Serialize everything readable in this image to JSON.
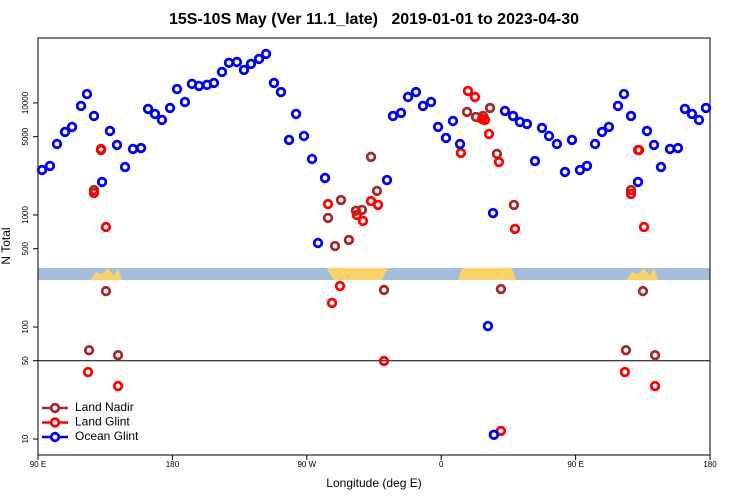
{
  "chart_data": {
    "type": "scatter",
    "title": "15S-10S May (Ver 11.1_late)   2019-01-01 to 2023-04-30",
    "x_label": "Longitude (deg E)",
    "y_label": "N Total",
    "xlim": [
      90,
      540
    ],
    "ylim": [
      7.2,
      38000
    ],
    "log_y": true,
    "xticks": [
      {
        "value": 90,
        "label": "90 E"
      },
      {
        "value": 180,
        "label": "180"
      },
      {
        "value": 270,
        "label": "90 W"
      },
      {
        "value": 360,
        "label": "0"
      },
      {
        "value": 450,
        "label": "90 E"
      },
      {
        "value": 540,
        "label": "180"
      }
    ],
    "yticks": [
      10,
      50,
      100,
      500,
      1000,
      5000,
      10000
    ],
    "reference_line": 50,
    "legend": "bottomleft",
    "series": [
      {
        "name": "Land Nadir",
        "color": "#a52a2a",
        "x": [
          127.5,
          132.2,
          135.5,
          124.2,
          143.6,
          284.2,
          288.9,
          292.9,
          298.2,
          302.9,
          306.9,
          313.0,
          317.0,
          321.7,
          377.3,
          383.3,
          388.0,
          392.7,
          397.3,
          400.0,
          408.7,
          487.1,
          491.8,
          495.1,
          483.7,
          503.2
        ],
        "values": [
          1670,
          3800,
          209,
          62,
          56,
          940,
          528,
          1360,
          598,
          1090,
          1110,
          3300,
          1640,
          214,
          8310,
          7500,
          7650,
          9020,
          3510,
          218,
          1230,
          1670,
          3800,
          209,
          62,
          56
        ]
      },
      {
        "name": "Land Glint",
        "color": "#ff0000",
        "x": [
          127.5,
          132.2,
          135.5,
          123.5,
          143.6,
          284.2,
          286.9,
          292.2,
          303.6,
          307.6,
          313.0,
          317.7,
          321.7,
          373.2,
          377.9,
          382.6,
          387.3,
          389.3,
          392.0,
          398.7,
          400.0,
          409.4,
          487.1,
          492.5,
          495.8,
          483.0,
          503.2
        ],
        "values": [
          1570,
          3880,
          781,
          39.6,
          29.7,
          1250,
          164,
          232,
          1000,
          884,
          1330,
          1230,
          49.7,
          3580,
          12800,
          11300,
          7190,
          7050,
          5290,
          2970,
          11.8,
          750,
          1540,
          3800,
          781,
          39.6,
          29.7
        ]
      },
      {
        "name": "Ocean Glint",
        "color": "#0000ee",
        "x": [
          92.7,
          98.0,
          102.7,
          108.1,
          112.8,
          118.8,
          122.8,
          127.5,
          132.9,
          138.2,
          142.9,
          148.3,
          153.6,
          159.0,
          163.7,
          168.3,
          173.0,
          178.4,
          183.1,
          188.4,
          193.1,
          197.8,
          203.2,
          207.8,
          213.2,
          217.9,
          223.2,
          227.9,
          232.6,
          238.0,
          242.7,
          248.0,
          252.7,
          258.1,
          262.8,
          268.1,
          273.5,
          277.5,
          282.2,
          323.7,
          327.7,
          333.1,
          337.8,
          343.1,
          347.8,
          353.2,
          357.9,
          363.2,
          367.9,
          372.6,
          391.3,
          394.7,
          402.7,
          408.1,
          412.7,
          417.4,
          422.8,
          427.5,
          432.2,
          437.5,
          442.9,
          447.6,
          452.9,
          457.6,
          463.0,
          467.7,
          472.3,
          478.4,
          482.4,
          487.1,
          491.8,
          497.8,
          502.5,
          507.2,
          513.2,
          518.5,
          523.2,
          527.9,
          532.6,
          537.3,
          395.3
        ],
        "values": [
          2520,
          2740,
          4300,
          5510,
          6110,
          9400,
          12000,
          7650,
          1970,
          5620,
          4220,
          2680,
          3880,
          3960,
          8840,
          7980,
          7050,
          9020,
          13300,
          10200,
          14800,
          14200,
          14500,
          15100,
          18900,
          22800,
          23200,
          19700,
          22300,
          24700,
          27400,
          15100,
          12500,
          4680,
          7980,
          5070,
          3160,
          562,
          2140,
          2050,
          7650,
          8150,
          11300,
          12500,
          9400,
          10200,
          6110,
          4870,
          6900,
          4300,
          102,
          1040,
          8490,
          7650,
          6770,
          6490,
          3030,
          5980,
          5070,
          4300,
          2420,
          4680,
          2520,
          2740,
          4300,
          5510,
          6110,
          9400,
          12000,
          7650,
          1970,
          5620,
          4220,
          2680,
          3880,
          3960,
          8840,
          7980,
          7050,
          9020,
          10.9
        ]
      }
    ]
  }
}
